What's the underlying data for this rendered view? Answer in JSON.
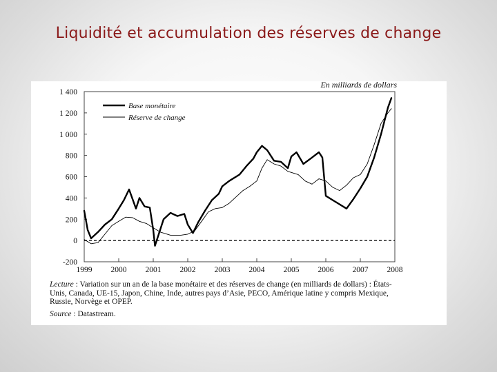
{
  "slide": {
    "title": "Liquidité et accumulation des réserves de change"
  },
  "chart_data": {
    "type": "line",
    "unit_note": "En milliards de dollars",
    "xlabel": "",
    "ylabel": "",
    "x_ticks": [
      "1999",
      "2000",
      "2001",
      "2002",
      "2003",
      "2004",
      "2005",
      "2006",
      "2007",
      "2008"
    ],
    "y_ticks": [
      "1 400",
      "1 200",
      "1 000",
      "800",
      "600",
      "400",
      "200",
      "0",
      "-200"
    ],
    "ylim": [
      -200,
      1400
    ],
    "xlim": [
      1999,
      2008
    ],
    "zero_line": "dashed",
    "legend_position": "top-left",
    "series": [
      {
        "name": "Base monétaire",
        "style": "thick",
        "color": "#000000",
        "x": [
          1999.0,
          1999.1,
          1999.2,
          1999.4,
          1999.6,
          1999.8,
          2000.0,
          2000.15,
          2000.3,
          2000.5,
          2000.6,
          2000.75,
          2000.9,
          2001.0,
          2001.05,
          2001.15,
          2001.3,
          2001.5,
          2001.7,
          2001.9,
          2002.0,
          2002.15,
          2002.3,
          2002.5,
          2002.7,
          2002.9,
          2003.0,
          2003.2,
          2003.5,
          2003.7,
          2003.9,
          2004.0,
          2004.15,
          2004.3,
          2004.5,
          2004.7,
          2004.9,
          2005.0,
          2005.15,
          2005.35,
          2005.6,
          2005.8,
          2005.9,
          2006.0,
          2006.2,
          2006.4,
          2006.6,
          2006.8,
          2007.0,
          2007.2,
          2007.4,
          2007.6,
          2007.8,
          2007.9
        ],
        "y": [
          280,
          100,
          20,
          80,
          150,
          200,
          300,
          380,
          480,
          300,
          400,
          320,
          310,
          100,
          -50,
          50,
          200,
          260,
          230,
          250,
          150,
          70,
          170,
          280,
          380,
          440,
          510,
          560,
          620,
          700,
          770,
          830,
          890,
          850,
          750,
          740,
          680,
          790,
          830,
          720,
          780,
          830,
          780,
          420,
          380,
          340,
          300,
          390,
          490,
          600,
          780,
          1000,
          1250,
          1340
        ]
      },
      {
        "name": "Réserve de change",
        "style": "thin",
        "color": "#000000",
        "x": [
          1999.0,
          1999.2,
          1999.4,
          1999.6,
          1999.8,
          2000.0,
          2000.2,
          2000.4,
          2000.6,
          2000.8,
          2001.0,
          2001.2,
          2001.5,
          2001.8,
          2002.0,
          2002.2,
          2002.4,
          2002.6,
          2002.8,
          2003.0,
          2003.2,
          2003.4,
          2003.6,
          2003.8,
          2004.0,
          2004.15,
          2004.3,
          2004.5,
          2004.7,
          2004.9,
          2005.0,
          2005.2,
          2005.4,
          2005.6,
          2005.8,
          2006.0,
          2006.2,
          2006.4,
          2006.6,
          2006.8,
          2007.0,
          2007.2,
          2007.4,
          2007.6,
          2007.8,
          2007.9
        ],
        "y": [
          10,
          -30,
          -20,
          60,
          140,
          180,
          220,
          215,
          180,
          160,
          120,
          80,
          50,
          50,
          60,
          90,
          180,
          270,
          300,
          310,
          350,
          410,
          470,
          510,
          560,
          680,
          760,
          720,
          700,
          650,
          640,
          620,
          560,
          530,
          580,
          560,
          500,
          470,
          520,
          590,
          620,
          720,
          900,
          1100,
          1200,
          1240
        ]
      }
    ]
  },
  "figure": {
    "caption_label": "Lecture",
    "caption_text": " : Variation sur un an de la base monétaire et des réserves de change (en milliards de dollars) : États-Unis, Canada, UE-15, Japon, Chine, Inde, autres pays d’Asie, PECO, Amérique latine y compris Mexique, Russie, Norvège et OPEP.",
    "source_label": "Source",
    "source_text": " : Datastream."
  }
}
